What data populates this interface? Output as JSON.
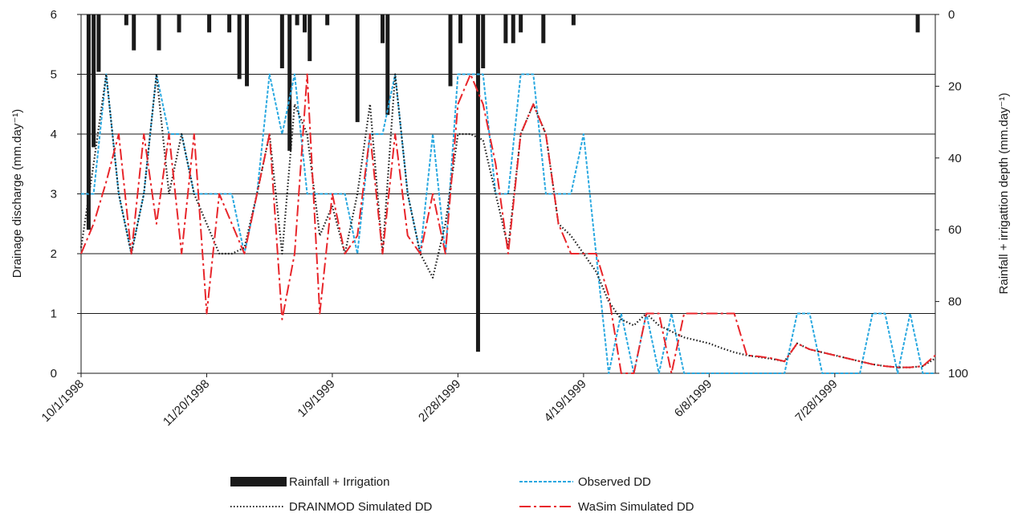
{
  "chart_data": {
    "type": "line",
    "y_label": "Drainage discharge (mm.day⁻¹)",
    "y2_label": "Rainfall + irrigattion depth (mm.day⁻¹)",
    "ylim": [
      0,
      6
    ],
    "yticks": [
      0,
      1,
      2,
      3,
      4,
      5,
      6
    ],
    "y2lim": [
      100,
      0
    ],
    "y2ticks": [
      0,
      20,
      40,
      60,
      80,
      100
    ],
    "xlim": [
      "10/1/1998",
      "9/6/1999"
    ],
    "xticks": [
      "10/1/1998",
      "11/20/1998",
      "1/9/1999",
      "2/28/1999",
      "4/19/1999",
      "6/8/1999",
      "7/28/1999"
    ],
    "grid": true,
    "x": [
      "10/1/1998",
      "10/6/1998",
      "10/11/1998",
      "10/16/1998",
      "10/21/1998",
      "10/26/1998",
      "10/31/1998",
      "11/5/1998",
      "11/10/1998",
      "11/15/1998",
      "11/20/1998",
      "11/25/1998",
      "11/30/1998",
      "12/5/1998",
      "12/10/1998",
      "12/15/1998",
      "12/20/1998",
      "12/25/1998",
      "12/30/1998",
      "1/4/1999",
      "1/9/1999",
      "1/14/1999",
      "1/19/1999",
      "1/24/1999",
      "1/29/1999",
      "2/3/1999",
      "2/8/1999",
      "2/13/1999",
      "2/18/1999",
      "2/23/1999",
      "2/28/1999",
      "3/5/1999",
      "3/10/1999",
      "3/15/1999",
      "3/20/1999",
      "3/25/1999",
      "3/30/1999",
      "4/4/1999",
      "4/9/1999",
      "4/14/1999",
      "4/19/1999",
      "4/24/1999",
      "4/29/1999",
      "5/4/1999",
      "5/9/1999",
      "5/14/1999",
      "5/19/1999",
      "5/24/1999",
      "5/29/1999",
      "6/3/1999",
      "6/8/1999",
      "6/13/1999",
      "6/18/1999",
      "6/23/1999",
      "6/28/1999",
      "7/3/1999",
      "7/8/1999",
      "7/13/1999",
      "7/18/1999",
      "7/23/1999",
      "7/28/1999",
      "8/2/1999",
      "8/7/1999",
      "8/12/1999",
      "8/17/1999",
      "8/22/1999",
      "8/27/1999",
      "9/1/1999",
      "9/6/1999"
    ],
    "series": [
      {
        "name": "Rainfall + Irrigation",
        "type": "bar",
        "axis": "y2",
        "color": "#1a1a1a",
        "x": [
          "10/4/1998",
          "10/6/1998",
          "10/8/1998",
          "10/19/1998",
          "10/22/1998",
          "11/1/1998",
          "11/9/1998",
          "11/21/1998",
          "11/29/1998",
          "12/3/1998",
          "12/6/1998",
          "12/20/1998",
          "12/23/1998",
          "12/26/1998",
          "12/29/1998",
          "12/31/1998",
          "1/7/1999",
          "1/19/1999",
          "1/29/1999",
          "1/31/1999",
          "2/25/1999",
          "3/1/1999",
          "3/8/1999",
          "3/10/1999",
          "3/19/1999",
          "3/22/1999",
          "3/25/1999",
          "4/3/1999",
          "4/15/1999",
          "8/30/1999"
        ],
        "values": [
          60,
          37,
          16,
          3,
          10,
          10,
          5,
          5,
          5,
          18,
          20,
          15,
          38,
          3,
          5,
          13,
          3,
          30,
          8,
          28,
          20,
          8,
          94,
          15,
          8,
          8,
          5,
          8,
          3,
          5
        ]
      },
      {
        "name": "Observed DD",
        "type": "line",
        "color": "#29a8e0",
        "dash": "4,2",
        "values": [
          3,
          3,
          5,
          3,
          2,
          3,
          5,
          4,
          4,
          3,
          3,
          3,
          3,
          2,
          3,
          5,
          4,
          5,
          3,
          3,
          3,
          3,
          2,
          4,
          4,
          5,
          3,
          2,
          4,
          2,
          5,
          5,
          5,
          3,
          3,
          5,
          5,
          3,
          3,
          3,
          4,
          2,
          0,
          1,
          0,
          1,
          0,
          1,
          0,
          0,
          0,
          0,
          0,
          0,
          0,
          0,
          0,
          1,
          1,
          0,
          0,
          0,
          0,
          1,
          1,
          0,
          1,
          0,
          0
        ]
      },
      {
        "name": "DRAINMOD Simulated DD",
        "type": "line",
        "color": "#1a1a1a",
        "dash": "1.5,2.5",
        "values": [
          2.1,
          3.5,
          5,
          3,
          2,
          3,
          5,
          3,
          4,
          3,
          2.5,
          2,
          2,
          2.1,
          3,
          4,
          2,
          4.5,
          4,
          2.3,
          2.8,
          2,
          3,
          4.5,
          2,
          5,
          3,
          2,
          1.6,
          2.5,
          4,
          4,
          3.9,
          3,
          2.1,
          4,
          4.5,
          4,
          2.5,
          2.3,
          2,
          1.7,
          1.2,
          0.9,
          0.8,
          1,
          0.8,
          0.7,
          0.6,
          0.55,
          0.5,
          0.42,
          0.35,
          0.3,
          0.27,
          0.24,
          0.2,
          0.5,
          0.4,
          0.35,
          0.3,
          0.25,
          0.2,
          0.15,
          0.12,
          0.1,
          0.1,
          0.12,
          0.25
        ]
      },
      {
        "name": "WaSim Simulated DD",
        "type": "line",
        "color": "#e8262b",
        "dash": "14,4,3,4",
        "values": [
          2,
          2.5,
          3.2,
          4,
          2,
          4,
          2.5,
          4,
          2,
          4,
          1,
          3,
          2.5,
          2,
          3,
          4,
          0.9,
          2,
          5,
          1,
          3,
          2,
          2.3,
          4,
          2,
          4,
          2.3,
          2,
          3,
          2,
          4.5,
          5,
          4.5,
          3.5,
          2,
          4,
          4.5,
          4,
          2.5,
          2,
          2,
          2,
          1.3,
          0,
          0,
          1,
          1,
          0,
          1,
          1,
          1,
          1,
          1,
          0.3,
          0.28,
          0.25,
          0.2,
          0.5,
          0.4,
          0.35,
          0.3,
          0.25,
          0.2,
          0.15,
          0.12,
          0.1,
          0.1,
          0.12,
          0.3
        ]
      }
    ]
  }
}
